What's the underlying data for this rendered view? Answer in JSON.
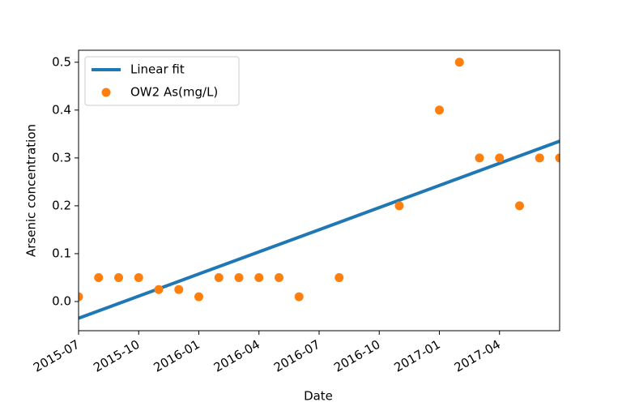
{
  "chart_data": {
    "type": "scatter",
    "xlabel": "Date",
    "ylabel": "Arsenic concentration",
    "xlim": [
      "2015-07",
      "2017-07"
    ],
    "xticks": [
      "2015-07",
      "2015-10",
      "2016-01",
      "2016-04",
      "2016-07",
      "2016-10",
      "2017-01",
      "2017-04"
    ],
    "ylim": [
      -0.061,
      0.525
    ],
    "yticks": [
      {
        "value": 0,
        "label": "0.0"
      },
      0.1,
      0.2,
      0.3,
      0.4,
      0.5
    ],
    "legend": "upper left",
    "series": [
      {
        "name": "Linear fit",
        "type": "line",
        "color": "#1f77b4",
        "x": [
          "2015-07",
          "2017-07"
        ],
        "values": [
          -0.035,
          0.335
        ]
      },
      {
        "name": "OW2 As(mg/L)",
        "type": "scatter",
        "color": "#ff7f0e",
        "x": [
          "2015-07",
          "2015-08",
          "2015-09",
          "2015-10",
          "2015-11",
          "2015-12",
          "2016-01",
          "2016-02",
          "2016-03",
          "2016-04",
          "2016-05",
          "2016-06",
          "2016-08",
          "2016-11",
          "2017-01",
          "2017-02",
          "2017-03",
          "2017-04",
          "2017-05",
          "2017-06",
          "2017-07"
        ],
        "values": [
          0.01,
          0.05,
          0.05,
          0.05,
          0.025,
          0.025,
          0.01,
          0.05,
          0.05,
          0.05,
          0.05,
          0.01,
          0.05,
          0.2,
          0.4,
          0.5,
          0.3,
          0.3,
          0.2,
          0.3,
          0.3
        ]
      }
    ]
  }
}
